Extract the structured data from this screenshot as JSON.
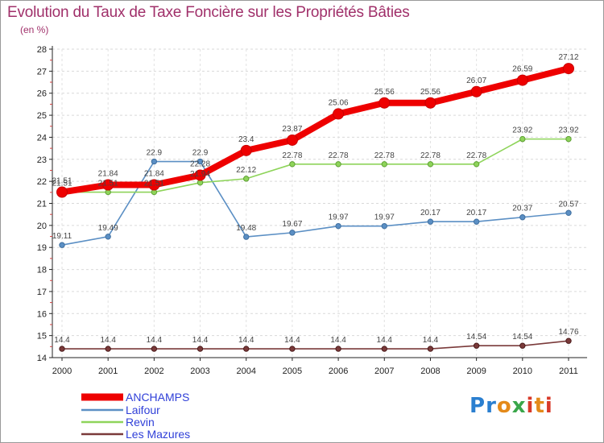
{
  "header": {
    "title": "Evolution du Taux de Taxe Foncière sur les Propriétés Bâties",
    "unit": "(en %)"
  },
  "logo_text": "Proxiti",
  "chart_data": {
    "type": "line",
    "title": "Evolution du Taux de Taxe Foncière sur les Propriétés Bâties",
    "ylabel": "(en %)",
    "xlabel": "",
    "x": [
      "2000",
      "2001",
      "2002",
      "2003",
      "2004",
      "2005",
      "2006",
      "2007",
      "2008",
      "2009",
      "2010",
      "2011"
    ],
    "ylim": [
      14,
      28
    ],
    "yticks": [
      14,
      15,
      16,
      17,
      18,
      19,
      20,
      21,
      22,
      23,
      24,
      25,
      26,
      27,
      28
    ],
    "legend_position": "bottom-left",
    "series": [
      {
        "name": "ANCHAMPS",
        "color": "#ee0000",
        "values": [
          21.51,
          21.84,
          21.84,
          22.28,
          23.4,
          23.87,
          25.06,
          25.56,
          25.56,
          26.07,
          26.59,
          27.12
        ],
        "labels": [
          "21.51",
          "21.84",
          "21.84",
          "22.28",
          "23.4",
          "23.87",
          "25.06",
          "25.56",
          "25.56",
          "26.07",
          "26.59",
          "27.12"
        ]
      },
      {
        "name": "Laifour",
        "color": "#5b8fc4",
        "values": [
          19.11,
          19.49,
          22.9,
          22.9,
          19.48,
          19.67,
          19.97,
          19.97,
          20.17,
          20.17,
          20.37,
          20.57
        ],
        "labels": [
          "19.11",
          "19.49",
          "22.9",
          "22.9",
          "19.48",
          "19.67",
          "19.97",
          "19.97",
          "20.17",
          "20.17",
          "20.37",
          "20.57"
        ]
      },
      {
        "name": "Revin",
        "color": "#8ed45a",
        "values": [
          21.51,
          21.51,
          21.51,
          21.94,
          22.12,
          22.78,
          22.78,
          22.78,
          22.78,
          22.78,
          23.92,
          23.92
        ],
        "labels": [
          "21.51",
          "21.51",
          "21.51",
          "21.94",
          "22.12",
          "22.78",
          "22.78",
          "22.78",
          "22.78",
          "22.78",
          "23.92",
          "23.92"
        ]
      },
      {
        "name": "Les Mazures",
        "color": "#7a3a3a",
        "values": [
          14.4,
          14.4,
          14.4,
          14.4,
          14.4,
          14.4,
          14.4,
          14.4,
          14.4,
          14.54,
          14.54,
          14.76
        ],
        "labels": [
          "14.4",
          "14.4",
          "14.4",
          "14.4",
          "14.4",
          "14.4",
          "14.4",
          "14.4",
          "14.4",
          "14.54",
          "14.54",
          "14.76"
        ]
      }
    ]
  }
}
